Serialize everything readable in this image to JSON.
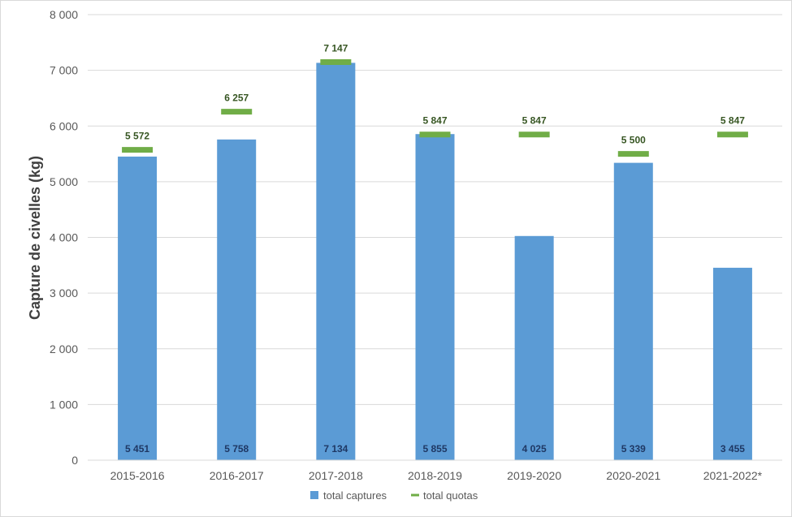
{
  "chart_data": {
    "type": "bar",
    "title": "",
    "xlabel": "",
    "ylabel": "Capture de civelles (kg)",
    "ylim": [
      0,
      8000
    ],
    "yticks": [
      0,
      1000,
      2000,
      3000,
      4000,
      5000,
      6000,
      7000,
      8000
    ],
    "ytick_labels": [
      "0",
      "1 000",
      "2 000",
      "3 000",
      "4 000",
      "5 000",
      "6 000",
      "7 000",
      "8 000"
    ],
    "grid": true,
    "legend_position": "bottom",
    "categories": [
      "2015-2016",
      "2016-2017",
      "2017-2018",
      "2018-2019",
      "2019-2020",
      "2020-2021",
      "2021-2022*"
    ],
    "series": [
      {
        "name": "total captures",
        "kind": "bar",
        "color": "#5b9bd5",
        "values": [
          5451,
          5758,
          7134,
          5855,
          4025,
          5339,
          3455
        ],
        "labels": [
          "5 451",
          "5 758",
          "7 134",
          "5 855",
          "4 025",
          "5 339",
          "3 455"
        ]
      },
      {
        "name": "total quotas",
        "kind": "marker",
        "color": "#70ad47",
        "values": [
          5572,
          6257,
          7147,
          5847,
          5847,
          5500,
          5847
        ],
        "labels": [
          "5 572",
          "6 257",
          "7 147",
          "5 847",
          "5 847",
          "5 500",
          "5 847"
        ]
      }
    ]
  }
}
